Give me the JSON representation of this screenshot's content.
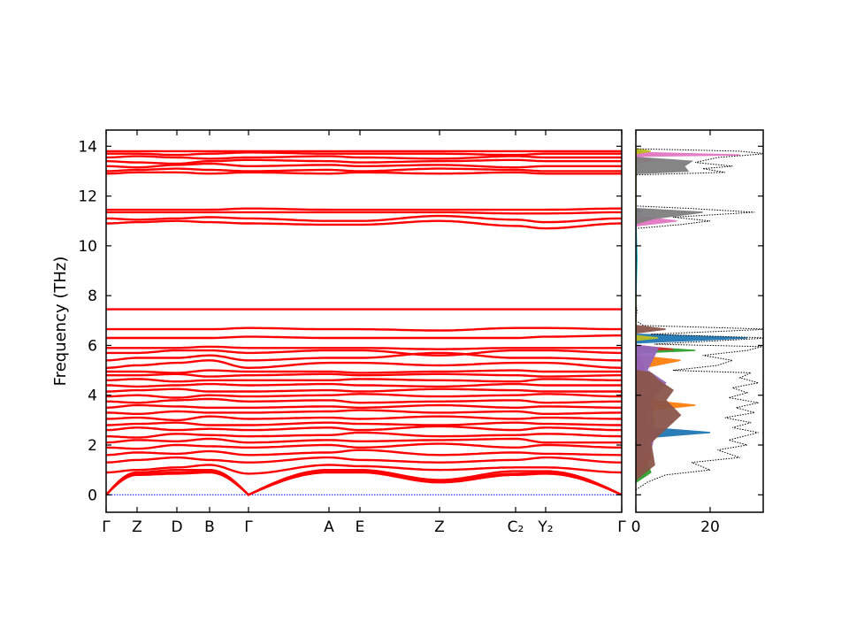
{
  "chart_data": [
    {
      "type": "line",
      "ylabel": "Frequency (THz)",
      "xlabel": "",
      "ylim": [
        -0.7,
        14.65
      ],
      "yticks": [
        0,
        2,
        4,
        6,
        8,
        10,
        12,
        14
      ],
      "kpoints": [
        {
          "label": "Γ",
          "path_distance": 0
        },
        {
          "label": "Z",
          "path_distance": 0.35
        },
        {
          "label": "D",
          "path_distance": 0.8
        },
        {
          "label": "B",
          "path_distance": 1.17
        },
        {
          "label": "Γ",
          "path_distance": 1.61
        },
        {
          "label": "A",
          "path_distance": 2.52
        },
        {
          "label": "E",
          "path_distance": 2.87
        },
        {
          "label": "Z",
          "path_distance": 3.77
        },
        {
          "label": "C₂",
          "path_distance": 4.63
        },
        {
          "label": "Y₂",
          "path_distance": 4.97
        },
        {
          "label": "Γ",
          "path_distance": 5.83
        }
      ],
      "band_color": "#ff0000",
      "zero_line_color": "#0000ff",
      "bands": [
        [
          0,
          0.85,
          0.9,
          0.95,
          0,
          0.95,
          0.95,
          0.55,
          0.85,
          0.9,
          0
        ],
        [
          0,
          0.9,
          1.0,
          1.0,
          0,
          1.0,
          1.0,
          0.6,
          0.95,
          0.95,
          0
        ],
        [
          0,
          0.8,
          0.85,
          0.9,
          0,
          0.9,
          0.9,
          0.5,
          0.8,
          0.85,
          0
        ],
        [
          0.9,
          1.0,
          1.1,
          1.2,
          0.85,
          1.2,
          1.15,
          1.0,
          1.1,
          1.1,
          0.9
        ],
        [
          1.3,
          1.4,
          1.5,
          1.4,
          1.3,
          1.5,
          1.4,
          1.3,
          1.4,
          1.5,
          1.3
        ],
        [
          1.6,
          1.7,
          1.65,
          1.75,
          1.6,
          1.7,
          1.8,
          1.6,
          1.7,
          1.65,
          1.6
        ],
        [
          1.9,
          1.85,
          2.0,
          1.95,
          1.9,
          2.0,
          1.9,
          2.05,
          1.9,
          2.0,
          1.9
        ],
        [
          2.1,
          2.2,
          2.15,
          2.25,
          2.1,
          2.2,
          2.15,
          2.2,
          2.25,
          2.1,
          2.1
        ],
        [
          2.35,
          2.3,
          2.45,
          2.4,
          2.35,
          2.4,
          2.5,
          2.35,
          2.4,
          2.45,
          2.35
        ],
        [
          2.6,
          2.7,
          2.6,
          2.65,
          2.6,
          2.7,
          2.6,
          2.75,
          2.6,
          2.7,
          2.6
        ],
        [
          2.8,
          2.85,
          2.9,
          2.8,
          2.8,
          2.9,
          2.85,
          2.8,
          2.9,
          2.85,
          2.8
        ],
        [
          3.05,
          3.1,
          3.0,
          3.15,
          3.05,
          3.1,
          3.05,
          3.15,
          3.05,
          3.1,
          3.05
        ],
        [
          3.3,
          3.25,
          3.35,
          3.3,
          3.3,
          3.35,
          3.4,
          3.3,
          3.35,
          3.25,
          3.3
        ],
        [
          3.5,
          3.6,
          3.55,
          3.5,
          3.5,
          3.55,
          3.5,
          3.6,
          3.5,
          3.55,
          3.5
        ],
        [
          3.75,
          3.7,
          3.8,
          3.85,
          3.75,
          3.8,
          3.7,
          3.75,
          3.8,
          3.7,
          3.75
        ],
        [
          3.95,
          4.0,
          3.9,
          4.0,
          3.95,
          4.0,
          4.05,
          3.95,
          4.0,
          4.05,
          3.95
        ],
        [
          4.15,
          4.2,
          4.25,
          4.15,
          4.15,
          4.2,
          4.15,
          4.25,
          4.2,
          4.15,
          4.15
        ],
        [
          4.4,
          4.35,
          4.4,
          4.45,
          4.4,
          4.45,
          4.4,
          4.35,
          4.45,
          4.4,
          4.4
        ],
        [
          4.6,
          4.65,
          4.55,
          4.6,
          4.6,
          4.6,
          4.65,
          4.6,
          4.55,
          4.65,
          4.6
        ],
        [
          4.8,
          4.8,
          4.85,
          4.75,
          4.8,
          4.85,
          4.8,
          4.85,
          4.8,
          4.75,
          4.8
        ],
        [
          4.95,
          4.95,
          4.9,
          5.0,
          4.95,
          4.95,
          4.9,
          4.95,
          5.0,
          4.95,
          4.95
        ],
        [
          5.1,
          5.2,
          5.3,
          5.4,
          5.1,
          5.3,
          5.3,
          5.2,
          5.3,
          5.3,
          5.1
        ],
        [
          5.4,
          5.5,
          5.5,
          5.6,
          5.4,
          5.5,
          5.5,
          5.7,
          5.5,
          5.5,
          5.4
        ],
        [
          5.7,
          5.7,
          5.8,
          5.8,
          5.7,
          5.8,
          5.8,
          5.6,
          5.8,
          5.8,
          5.7
        ],
        [
          5.9,
          5.9,
          5.9,
          5.95,
          5.9,
          5.9,
          5.9,
          5.85,
          5.9,
          5.9,
          5.9
        ],
        [
          6.3,
          6.3,
          6.3,
          6.3,
          6.35,
          6.3,
          6.3,
          6.3,
          6.3,
          6.35,
          6.4
        ],
        [
          6.65,
          6.65,
          6.65,
          6.65,
          6.7,
          6.65,
          6.65,
          6.6,
          6.7,
          6.7,
          6.65
        ],
        [
          7.45,
          7.45,
          7.45,
          7.45,
          7.45,
          7.45,
          7.45,
          7.45,
          7.45,
          7.45,
          7.45
        ],
        [
          10.9,
          10.95,
          11.0,
          10.95,
          10.9,
          10.85,
          10.85,
          11.0,
          10.8,
          10.7,
          10.9
        ],
        [
          11.1,
          11.05,
          11.1,
          11.15,
          11.1,
          11.0,
          11.0,
          11.2,
          11.05,
          10.95,
          11.1
        ],
        [
          11.35,
          11.35,
          11.35,
          11.35,
          11.35,
          11.35,
          11.35,
          11.35,
          11.3,
          11.3,
          11.35
        ],
        [
          11.45,
          11.45,
          11.45,
          11.45,
          11.5,
          11.45,
          11.45,
          11.45,
          11.45,
          11.45,
          11.5
        ],
        [
          12.9,
          12.95,
          12.95,
          12.9,
          12.95,
          12.9,
          12.95,
          12.9,
          12.95,
          12.9,
          12.9
        ],
        [
          13.0,
          13.05,
          13.1,
          13.05,
          13.0,
          13.05,
          13.0,
          13.1,
          13.05,
          13.0,
          13.0
        ],
        [
          13.2,
          13.15,
          13.25,
          13.3,
          13.2,
          13.25,
          13.2,
          13.25,
          13.15,
          13.2,
          13.2
        ],
        [
          13.4,
          13.35,
          13.3,
          13.4,
          13.45,
          13.4,
          13.35,
          13.4,
          13.45,
          13.4,
          13.4
        ],
        [
          13.55,
          13.6,
          13.55,
          13.5,
          13.55,
          13.6,
          13.55,
          13.5,
          13.6,
          13.55,
          13.55
        ],
        [
          13.7,
          13.7,
          13.65,
          13.7,
          13.75,
          13.7,
          13.7,
          13.7,
          13.65,
          13.7,
          13.7
        ],
        [
          13.8,
          13.8,
          13.8,
          13.8,
          13.8,
          13.8,
          13.8,
          13.8,
          13.8,
          13.8,
          13.8
        ]
      ]
    },
    {
      "type": "line",
      "xlabel": "",
      "ylabel": "",
      "xlim": [
        0,
        34.3
      ],
      "xticks": [
        0,
        20
      ],
      "ylim": [
        -0.7,
        14.65
      ],
      "orientation": "horizontal",
      "total": {
        "color": "#000000",
        "style": "dotted",
        "points": [
          [
            0.2,
            0
          ],
          [
            0.5,
            3
          ],
          [
            0.8,
            8
          ],
          [
            1.0,
            20
          ],
          [
            1.3,
            15
          ],
          [
            1.5,
            28
          ],
          [
            1.8,
            22
          ],
          [
            2.0,
            30
          ],
          [
            2.2,
            25
          ],
          [
            2.5,
            33
          ],
          [
            2.7,
            26
          ],
          [
            2.9,
            31
          ],
          [
            3.1,
            24
          ],
          [
            3.3,
            32
          ],
          [
            3.5,
            27
          ],
          [
            3.7,
            33
          ],
          [
            3.9,
            25
          ],
          [
            4.1,
            30
          ],
          [
            4.3,
            26
          ],
          [
            4.5,
            33
          ],
          [
            4.7,
            28
          ],
          [
            4.9,
            31
          ],
          [
            5.0,
            10
          ],
          [
            5.2,
            22
          ],
          [
            5.4,
            26
          ],
          [
            5.6,
            18
          ],
          [
            5.8,
            30
          ],
          [
            5.95,
            34
          ],
          [
            6.05,
            5
          ],
          [
            6.3,
            36
          ],
          [
            6.45,
            4
          ],
          [
            6.65,
            36
          ],
          [
            6.8,
            2
          ],
          [
            7.0,
            0
          ],
          [
            7.45,
            0.3
          ],
          [
            7.6,
            0
          ],
          [
            10.7,
            0
          ],
          [
            10.85,
            12
          ],
          [
            11.0,
            20
          ],
          [
            11.15,
            10
          ],
          [
            11.35,
            32
          ],
          [
            11.5,
            15
          ],
          [
            11.6,
            0
          ],
          [
            12.85,
            0
          ],
          [
            12.95,
            24
          ],
          [
            13.1,
            18
          ],
          [
            13.2,
            26
          ],
          [
            13.35,
            16
          ],
          [
            13.55,
            22
          ],
          [
            13.7,
            35
          ],
          [
            13.8,
            28
          ],
          [
            13.9,
            0
          ]
        ]
      },
      "partials": [
        {
          "color": "#1f77b4",
          "points": [
            [
              1.8,
              0
            ],
            [
              2.3,
              3
            ],
            [
              2.5,
              20
            ],
            [
              2.7,
              3
            ],
            [
              3.5,
              2
            ],
            [
              6.1,
              0
            ],
            [
              6.3,
              30
            ],
            [
              6.45,
              0
            ],
            [
              11.3,
              0
            ],
            [
              11.4,
              2
            ],
            [
              11.5,
              0
            ],
            [
              13.6,
              0
            ],
            [
              13.75,
              2
            ],
            [
              13.9,
              0
            ]
          ]
        },
        {
          "color": "#ff7f0e",
          "points": [
            [
              2.9,
              0
            ],
            [
              3.4,
              4
            ],
            [
              3.6,
              16
            ],
            [
              3.8,
              3
            ],
            [
              4.6,
              4
            ],
            [
              5.1,
              2
            ],
            [
              5.4,
              12
            ],
            [
              5.6,
              0
            ]
          ]
        },
        {
          "color": "#2ca02c",
          "points": [
            [
              0.5,
              0
            ],
            [
              0.9,
              4
            ],
            [
              1.3,
              3
            ],
            [
              2.0,
              2
            ],
            [
              3.0,
              5
            ],
            [
              4.3,
              3
            ],
            [
              5.7,
              0
            ],
            [
              5.8,
              16
            ],
            [
              5.95,
              0
            ],
            [
              10.8,
              0
            ],
            [
              10.95,
              2
            ],
            [
              11.1,
              0
            ]
          ]
        },
        {
          "color": "#d62728",
          "points": [
            [
              0.8,
              0
            ],
            [
              1.5,
              4
            ],
            [
              2.2,
              3
            ],
            [
              4.0,
              3
            ],
            [
              5.2,
              2
            ],
            [
              5.8,
              0
            ],
            [
              5.85,
              10
            ],
            [
              6.0,
              0
            ]
          ]
        },
        {
          "color": "#9467bd",
          "points": [
            [
              1.0,
              0
            ],
            [
              1.8,
              4
            ],
            [
              2.4,
              5
            ],
            [
              3.7,
              4
            ],
            [
              4.5,
              8
            ],
            [
              5.0,
              3
            ],
            [
              5.9,
              6
            ],
            [
              6.0,
              0
            ]
          ]
        },
        {
          "color": "#8c564b",
          "points": [
            [
              0.6,
              0
            ],
            [
              1.2,
              5
            ],
            [
              2.1,
              4
            ],
            [
              3.2,
              12
            ],
            [
              3.8,
              8
            ],
            [
              4.2,
              10
            ],
            [
              4.6,
              6
            ],
            [
              4.9,
              4
            ],
            [
              5.0,
              0
            ],
            [
              6.5,
              0
            ],
            [
              6.65,
              8
            ],
            [
              6.8,
              0
            ]
          ]
        },
        {
          "color": "#e377c2",
          "points": [
            [
              10.8,
              0
            ],
            [
              11.0,
              11
            ],
            [
              11.15,
              2
            ],
            [
              11.3,
              0
            ],
            [
              13.3,
              0
            ],
            [
              13.45,
              5
            ],
            [
              13.6,
              0
            ],
            [
              13.65,
              28
            ],
            [
              13.75,
              0
            ]
          ]
        },
        {
          "color": "#7f7f7f",
          "points": [
            [
              10.9,
              0
            ],
            [
              11.1,
              5
            ],
            [
              11.35,
              18
            ],
            [
              11.5,
              0
            ],
            [
              12.9,
              0
            ],
            [
              13.0,
              14
            ],
            [
              13.2,
              13
            ],
            [
              13.4,
              15
            ],
            [
              13.55,
              0
            ]
          ]
        },
        {
          "color": "#bcbd22",
          "points": [
            [
              6.2,
              0
            ],
            [
              6.3,
              6
            ],
            [
              6.4,
              0
            ],
            [
              13.7,
              0
            ],
            [
              13.8,
              4
            ],
            [
              13.9,
              0
            ]
          ]
        },
        {
          "color": "#17becf",
          "points": [
            [
              8.0,
              0
            ],
            [
              9.5,
              0.3
            ],
            [
              11.0,
              0
            ]
          ]
        }
      ]
    }
  ]
}
